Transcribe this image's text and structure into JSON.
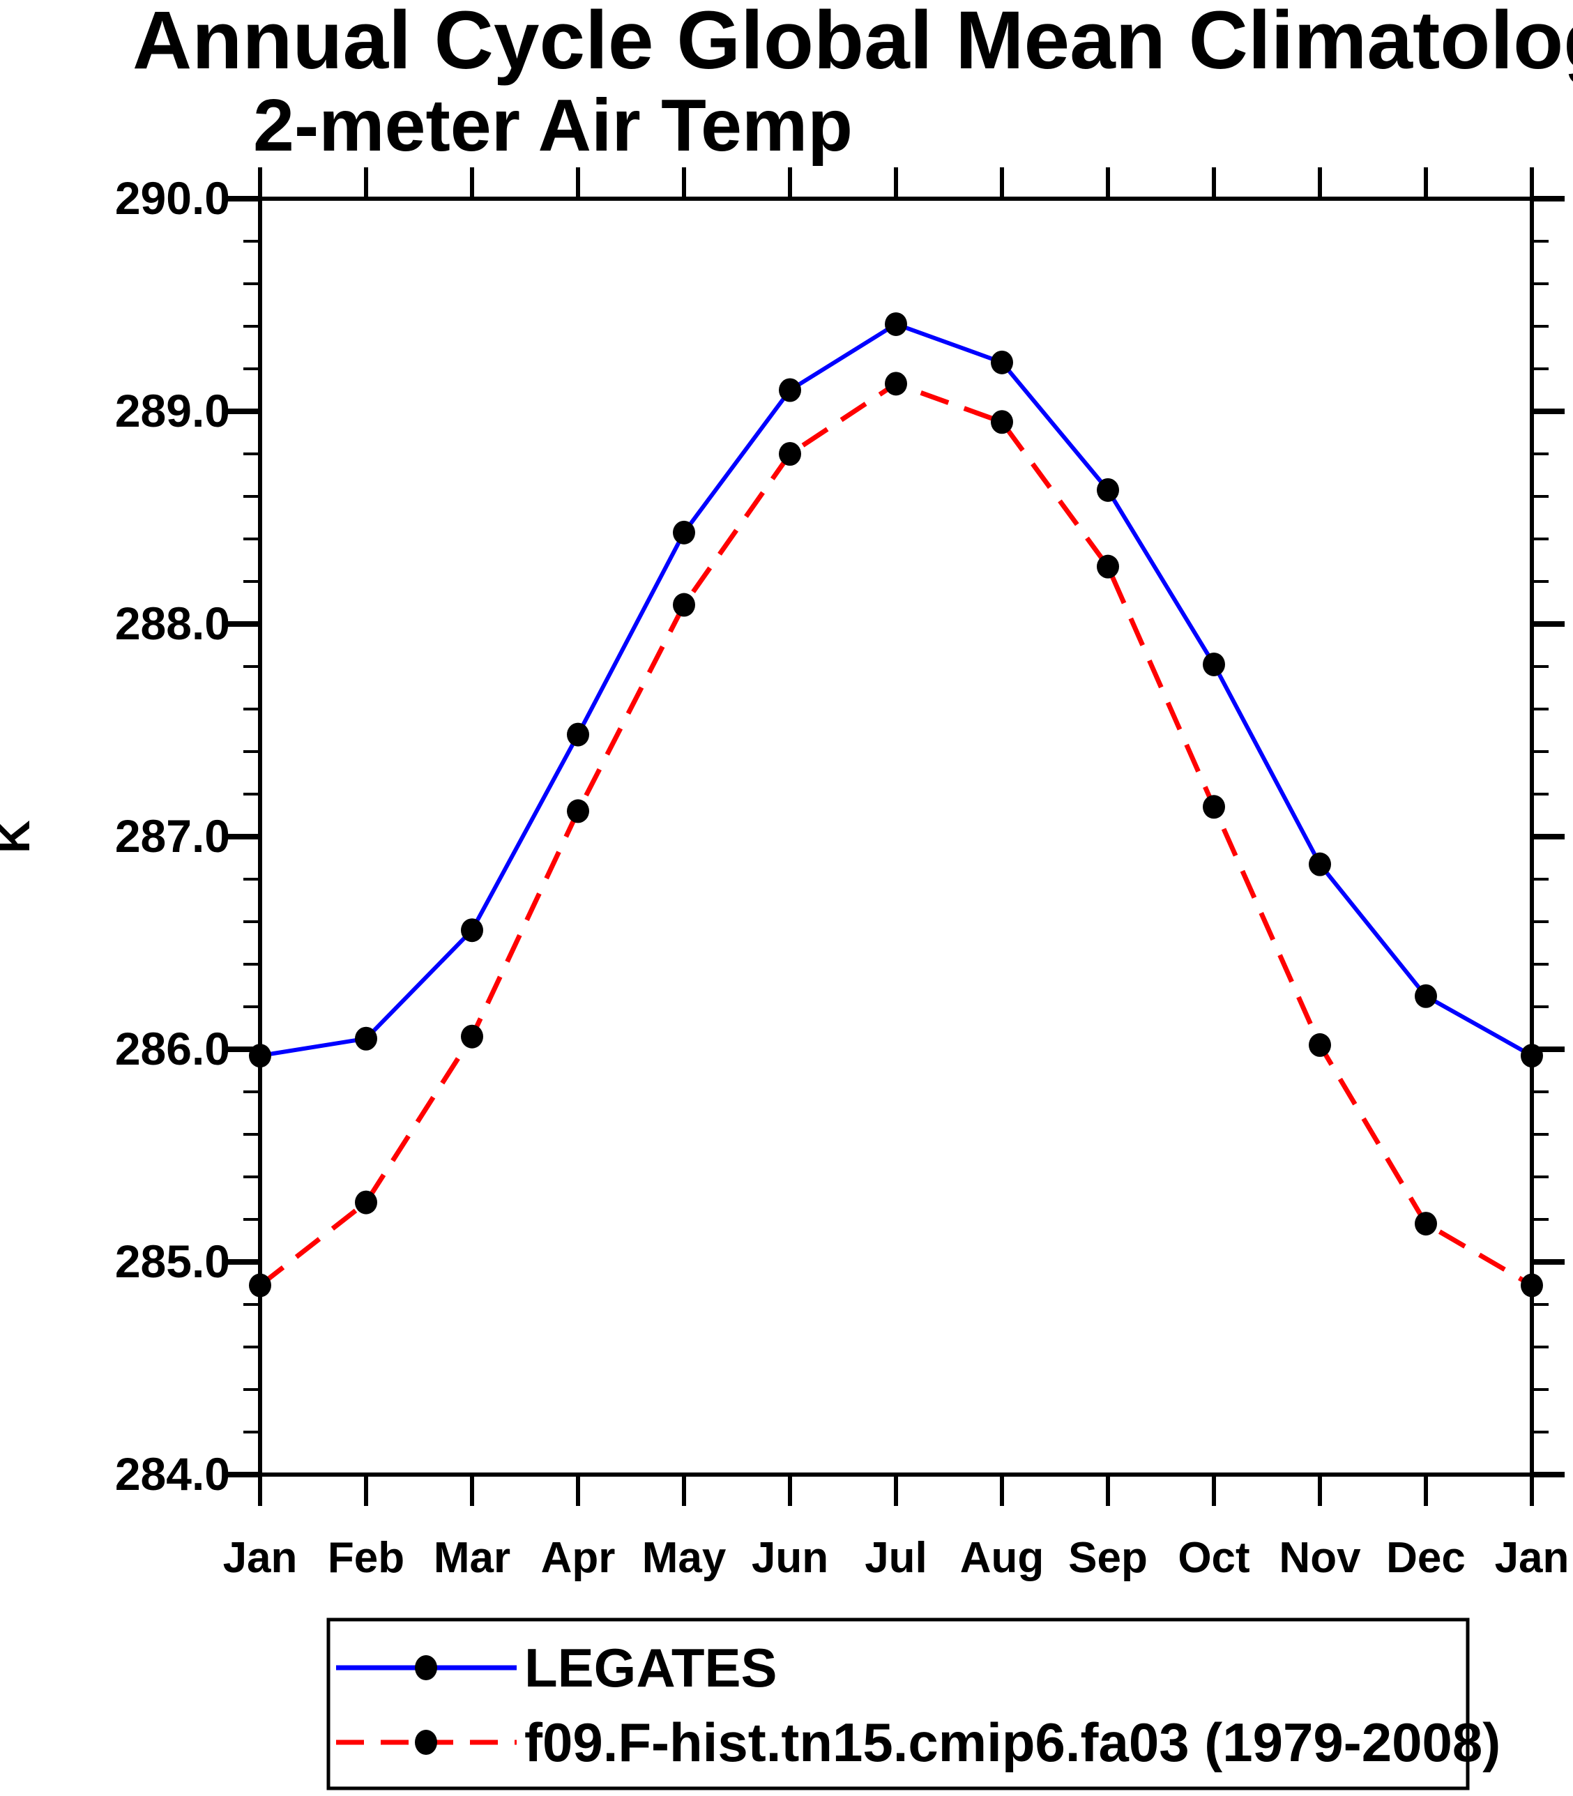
{
  "title": "Annual Cycle Global Mean Climatology",
  "subtitle": "2-meter Air Temp",
  "y_axis": {
    "label": "K",
    "min": 284.0,
    "max": 290.0,
    "major_step": 1.0,
    "minor_step": 0.2,
    "tick_labels": [
      "290.0",
      "289.0",
      "288.0",
      "287.0",
      "286.0",
      "285.0",
      "284.0"
    ]
  },
  "x_axis": {
    "tick_labels": [
      "Jan",
      "Feb",
      "Mar",
      "Apr",
      "May",
      "Jun",
      "Jul",
      "Aug",
      "Sep",
      "Oct",
      "Nov",
      "Dec",
      "Jan"
    ]
  },
  "colors": {
    "legates_line": "#0000ff",
    "model_line": "#ff0000",
    "marker": "#000000",
    "axis": "#000000",
    "background": "#ffffff"
  },
  "legend": {
    "items": [
      {
        "label": "LEGATES",
        "color": "#0000ff",
        "style": "solid"
      },
      {
        "label": "f09.F-hist.tn15.cmip6.fa03 (1979-2008)",
        "color": "#ff0000",
        "style": "dashed"
      }
    ]
  },
  "chart_data": {
    "type": "line",
    "x": [
      "Jan",
      "Feb",
      "Mar",
      "Apr",
      "May",
      "Jun",
      "Jul",
      "Aug",
      "Sep",
      "Oct",
      "Nov",
      "Dec",
      "Jan"
    ],
    "series": [
      {
        "name": "LEGATES",
        "color": "#0000ff",
        "line_style": "solid",
        "marker": "filled-circle",
        "values": [
          285.97,
          286.05,
          286.56,
          287.48,
          288.43,
          289.1,
          289.41,
          289.23,
          288.63,
          287.81,
          286.87,
          286.25,
          285.97
        ]
      },
      {
        "name": "f09.F-hist.tn15.cmip6.fa03 (1979-2008)",
        "color": "#ff0000",
        "line_style": "dashed",
        "marker": "filled-circle",
        "values": [
          284.89,
          285.28,
          286.06,
          287.12,
          288.09,
          288.8,
          289.13,
          288.95,
          288.27,
          287.14,
          286.02,
          285.18,
          284.89
        ]
      }
    ],
    "title": "Annual Cycle Global Mean Climatology",
    "subtitle": "2-meter Air Temp",
    "xlabel": "",
    "ylabel": "K",
    "ylim": [
      284.0,
      290.0
    ],
    "grid": false,
    "legend_position": "bottom"
  }
}
